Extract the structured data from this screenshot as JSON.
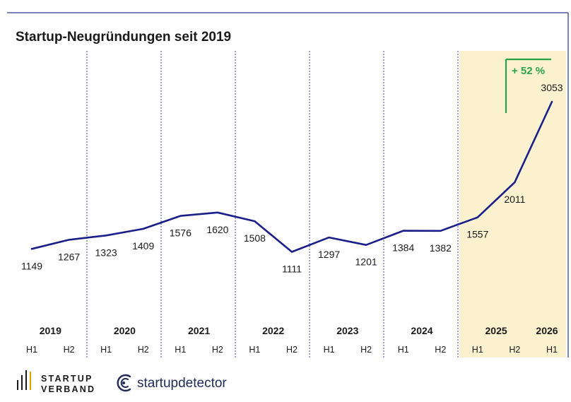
{
  "chart_data": {
    "type": "line",
    "title": "Startup-Neugründungen seit 2019",
    "x": [
      "2019 H1",
      "2019 H2",
      "2020 H1",
      "2020 H2",
      "2021 H1",
      "2021 H2",
      "2022 H1",
      "2022 H2",
      "2023 H1",
      "2023 H2",
      "2024 H1",
      "2024 H2",
      "2025 H1",
      "2025 H2",
      "2026 H1"
    ],
    "years": [
      "2019",
      "2020",
      "2021",
      "2022",
      "2023",
      "2024",
      "2025",
      "2026"
    ],
    "halves": [
      "H1",
      "H2",
      "H1",
      "H2",
      "H1",
      "H2",
      "H1",
      "H2",
      "H1",
      "H2",
      "H1",
      "H2",
      "H1",
      "H2",
      "H1"
    ],
    "series": [
      {
        "values": [
          1149,
          1267,
          1323,
          1409,
          1576,
          1620,
          1508,
          1111,
          1297,
          1201,
          1384,
          1382,
          1557,
          2011,
          3053
        ]
      }
    ],
    "data_labels": [
      "1149",
      "1267",
      "1323",
      "1409",
      "1576",
      "1620",
      "1508",
      "1111",
      "1297",
      "1201",
      "1384",
      "1382",
      "1557",
      "2011",
      "3053"
    ],
    "annotation": "+ 52 %",
    "highlight_range": [
      "2025 H1",
      "2026 H1"
    ],
    "grid": "dotted vertical year separators",
    "colors": {
      "line": "#1b1f8a",
      "highlight": "#fcf1cf",
      "annotation": "#2aa24a",
      "separator": "#2b3a8c"
    }
  },
  "logos": {
    "startup_verband": [
      "STARTUP",
      "VERBAND"
    ],
    "startupdetector": "startupdetector"
  }
}
